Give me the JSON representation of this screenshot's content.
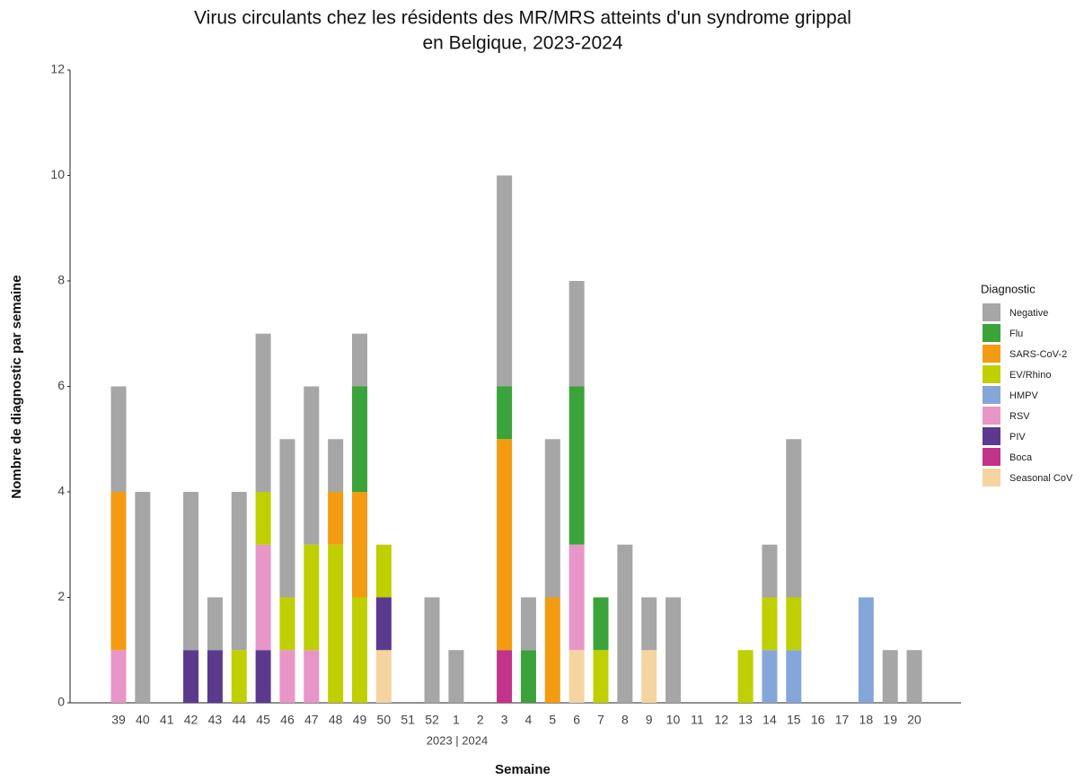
{
  "chart_data": {
    "type": "stacked_bar",
    "title": [
      "Virus circulants chez les résidents des MR/MRS atteints d'un syndrome grippal",
      "en Belgique, 2023-2024"
    ],
    "x_label": "Semaine",
    "y_label": "Nombre de diagnostic par semaine",
    "annotation": "2023 | 2024",
    "legend_title": "Diagnostic",
    "legend_position": "right",
    "categories": [
      "39",
      "40",
      "41",
      "42",
      "43",
      "44",
      "45",
      "46",
      "47",
      "48",
      "49",
      "50",
      "51",
      "52",
      "1",
      "2",
      "3",
      "4",
      "5",
      "6",
      "7",
      "8",
      "9",
      "10",
      "11",
      "12",
      "13",
      "14",
      "15",
      "16",
      "17",
      "18",
      "19",
      "20"
    ],
    "ylim": [
      0,
      12
    ],
    "yticks": [
      0,
      2,
      4,
      6,
      8,
      10,
      12
    ],
    "grid": false,
    "series": [
      {
        "name": "Negative",
        "color": "#a6a6a6",
        "values": [
          2,
          4,
          0,
          3,
          1,
          3,
          3,
          3,
          3,
          1,
          1,
          0,
          0,
          2,
          1,
          0,
          4,
          1,
          3,
          2,
          0,
          3,
          1,
          2,
          0,
          0,
          0,
          1,
          3,
          0,
          0,
          0,
          1,
          1
        ]
      },
      {
        "name": "Flu",
        "color": "#3aa43a",
        "values": [
          0,
          0,
          0,
          0,
          0,
          0,
          0,
          0,
          0,
          0,
          2,
          0,
          0,
          0,
          0,
          0,
          1,
          1,
          0,
          3,
          1,
          0,
          0,
          0,
          0,
          0,
          0,
          0,
          0,
          0,
          0,
          0,
          0,
          0
        ]
      },
      {
        "name": "SARS-CoV-2",
        "color": "#f39c12",
        "values": [
          3,
          0,
          0,
          0,
          0,
          0,
          0,
          0,
          0,
          1,
          2,
          0,
          0,
          0,
          0,
          0,
          4,
          0,
          2,
          0,
          0,
          0,
          0,
          0,
          0,
          0,
          0,
          0,
          0,
          0,
          0,
          0,
          0,
          0
        ]
      },
      {
        "name": "EV/Rhino",
        "color": "#bfcf00",
        "values": [
          0,
          0,
          0,
          0,
          0,
          1,
          1,
          1,
          2,
          3,
          2,
          1,
          0,
          0,
          0,
          0,
          0,
          0,
          0,
          0,
          1,
          0,
          0,
          0,
          0,
          0,
          1,
          1,
          1,
          0,
          0,
          0,
          0,
          0
        ]
      },
      {
        "name": "HMPV",
        "color": "#85a6d8",
        "values": [
          0,
          0,
          0,
          0,
          0,
          0,
          0,
          0,
          0,
          0,
          0,
          0,
          0,
          0,
          0,
          0,
          0,
          0,
          0,
          0,
          0,
          0,
          0,
          0,
          0,
          0,
          0,
          1,
          1,
          0,
          0,
          2,
          0,
          0
        ]
      },
      {
        "name": "RSV",
        "color": "#e895c7",
        "values": [
          1,
          0,
          0,
          0,
          0,
          0,
          2,
          1,
          1,
          0,
          0,
          0,
          0,
          0,
          0,
          0,
          0,
          0,
          0,
          2,
          0,
          0,
          0,
          0,
          0,
          0,
          0,
          0,
          0,
          0,
          0,
          0,
          0,
          0
        ]
      },
      {
        "name": "PIV",
        "color": "#5b3a8e",
        "values": [
          0,
          0,
          0,
          1,
          1,
          0,
          1,
          0,
          0,
          0,
          0,
          1,
          0,
          0,
          0,
          0,
          0,
          0,
          0,
          0,
          0,
          0,
          0,
          0,
          0,
          0,
          0,
          0,
          0,
          0,
          0,
          0,
          0,
          0
        ]
      },
      {
        "name": "Boca",
        "color": "#c2338a",
        "values": [
          0,
          0,
          0,
          0,
          0,
          0,
          0,
          0,
          0,
          0,
          0,
          0,
          0,
          0,
          0,
          0,
          1,
          0,
          0,
          0,
          0,
          0,
          0,
          0,
          0,
          0,
          0,
          0,
          0,
          0,
          0,
          0,
          0,
          0
        ]
      },
      {
        "name": "Seasonal CoV",
        "color": "#f5d4a0",
        "values": [
          0,
          0,
          0,
          0,
          0,
          0,
          0,
          0,
          0,
          0,
          0,
          1,
          0,
          0,
          0,
          0,
          0,
          0,
          0,
          1,
          0,
          0,
          1,
          0,
          0,
          0,
          0,
          0,
          0,
          0,
          0,
          0,
          0,
          0
        ]
      }
    ]
  }
}
